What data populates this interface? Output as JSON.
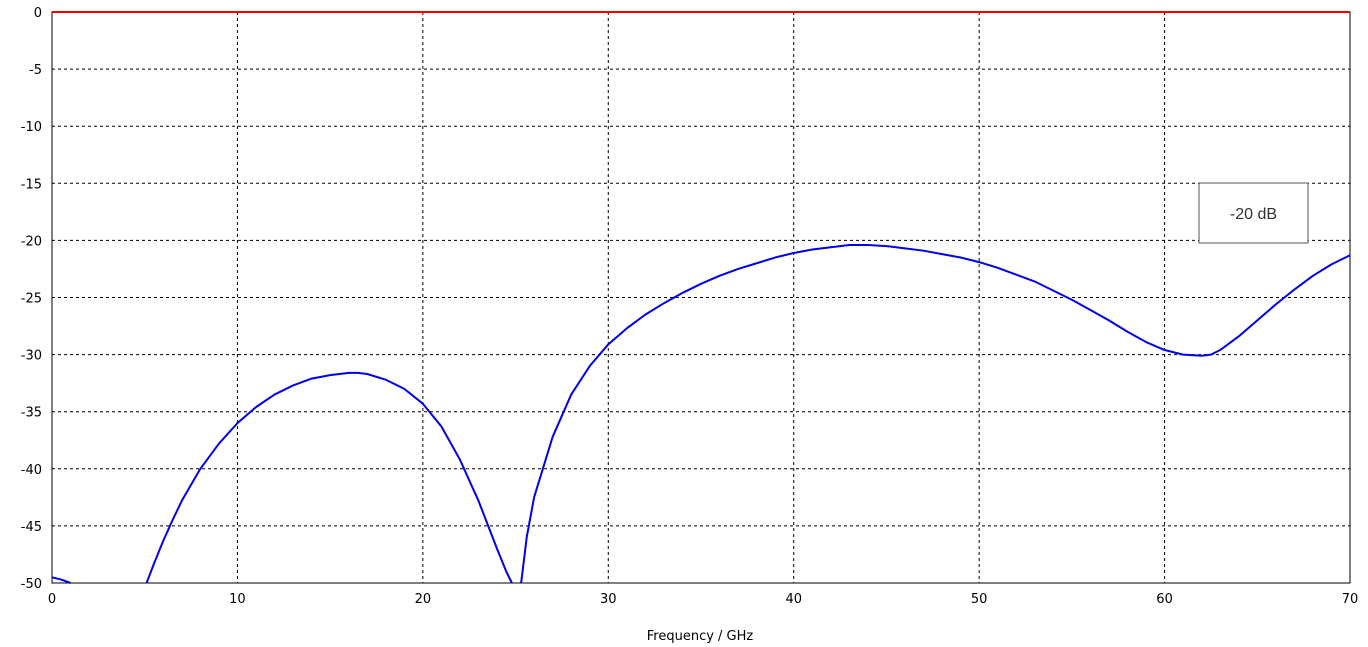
{
  "chart_data": {
    "type": "line",
    "xlabel": "Frequency / GHz",
    "ylabel": "",
    "xlim": [
      0,
      70
    ],
    "ylim": [
      -50,
      0
    ],
    "x_ticks": [
      0,
      10,
      20,
      30,
      40,
      50,
      60,
      70
    ],
    "y_ticks": [
      0,
      -5,
      -10,
      -15,
      -20,
      -25,
      -30,
      -35,
      -40,
      -45,
      -50
    ],
    "grid": true,
    "annotation": "-20 dB",
    "colors": {
      "s11": "#0000ee",
      "reference": "#ee0000",
      "grid": "#000000"
    },
    "series": [
      {
        "x": [
          0,
          0.5,
          1.0
        ],
        "y": [
          -49.5,
          -49.7,
          -50
        ]
      },
      {
        "x": [
          5.1,
          5.5,
          6,
          6.5,
          7,
          8,
          9,
          10,
          11,
          12,
          13,
          14,
          15,
          16,
          16.5,
          17,
          18,
          19,
          20,
          21,
          22,
          23,
          24,
          24.5,
          24.8
        ],
        "y": [
          -50,
          -48.3,
          -46.3,
          -44.5,
          -42.8,
          -40.0,
          -37.8,
          -36.0,
          -34.6,
          -33.5,
          -32.7,
          -32.1,
          -31.8,
          -31.6,
          -31.6,
          -31.7,
          -32.2,
          -33.0,
          -34.3,
          -36.3,
          -39.2,
          -42.8,
          -47.0,
          -49.0,
          -50
        ]
      },
      {
        "x": [
          25.3,
          25.6,
          26,
          27,
          28,
          29,
          30,
          31,
          32,
          33,
          34,
          35,
          36,
          37,
          38,
          39,
          40,
          41,
          42,
          43,
          44,
          45,
          46,
          47,
          48,
          49,
          50,
          51,
          52,
          53,
          54,
          55,
          56,
          57,
          58,
          59,
          60,
          61,
          62,
          62.5,
          63,
          64,
          65,
          66,
          67,
          68,
          69,
          70
        ],
        "y": [
          -50,
          -46.0,
          -42.5,
          -37.2,
          -33.5,
          -31.0,
          -29.1,
          -27.7,
          -26.5,
          -25.5,
          -24.6,
          -23.8,
          -23.1,
          -22.5,
          -22.0,
          -21.5,
          -21.1,
          -20.8,
          -20.6,
          -20.4,
          -20.4,
          -20.5,
          -20.7,
          -20.9,
          -21.2,
          -21.5,
          -21.9,
          -22.4,
          -23.0,
          -23.6,
          -24.4,
          -25.2,
          -26.1,
          -27.0,
          -28.0,
          -28.9,
          -29.6,
          -30.0,
          -30.1,
          -30.0,
          -29.6,
          -28.4,
          -27.0,
          -25.6,
          -24.3,
          -23.1,
          -22.1,
          -21.3
        ]
      },
      {
        "x": [
          0,
          70
        ],
        "y": [
          0,
          0
        ]
      }
    ]
  }
}
